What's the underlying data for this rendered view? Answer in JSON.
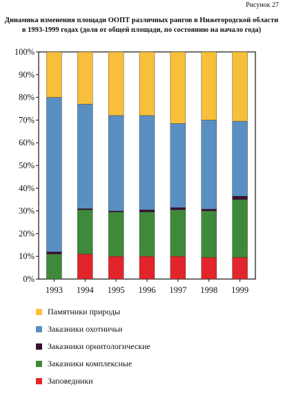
{
  "figure_label": "Рисунок 27",
  "chart_data": {
    "type": "bar",
    "stacked": true,
    "title": "Динамика изменения площади ООПТ различных рангов в Нижегородской области",
    "subtitle": "в 1993-1999 годах (доля от общей площади, по состоянию на начало года)",
    "categories": [
      "1993",
      "1994",
      "1995",
      "1996",
      "1997",
      "1998",
      "1999"
    ],
    "yticks": [
      "0%",
      "10%",
      "20%",
      "30%",
      "40%",
      "50%",
      "60%",
      "70%",
      "80%",
      "90%",
      "100%"
    ],
    "ylim": [
      0,
      100
    ],
    "grid": false,
    "legend_position": "bottom",
    "series": [
      {
        "name": "Заповедники",
        "color": "#e2252b",
        "values": [
          0,
          11,
          10,
          10,
          10,
          9.5,
          9.5
        ]
      },
      {
        "name": "Заказники комплексные",
        "color": "#3f8a3a",
        "values": [
          11,
          19.5,
          19.5,
          19.5,
          20.5,
          20.5,
          25.5
        ]
      },
      {
        "name": "Заказники орнитологические",
        "color": "#3a1030",
        "values": [
          1,
          0.5,
          0.5,
          1,
          1,
          0.8,
          1.5
        ]
      },
      {
        "name": "Заказники охотничьи",
        "color": "#5a8fc4",
        "values": [
          68,
          46,
          42,
          41.5,
          37,
          39.2,
          33
        ]
      },
      {
        "name": "Памятники природы",
        "color": "#f7bf3a",
        "values": [
          20,
          23,
          28,
          28,
          31.5,
          30,
          30.5
        ]
      }
    ]
  }
}
